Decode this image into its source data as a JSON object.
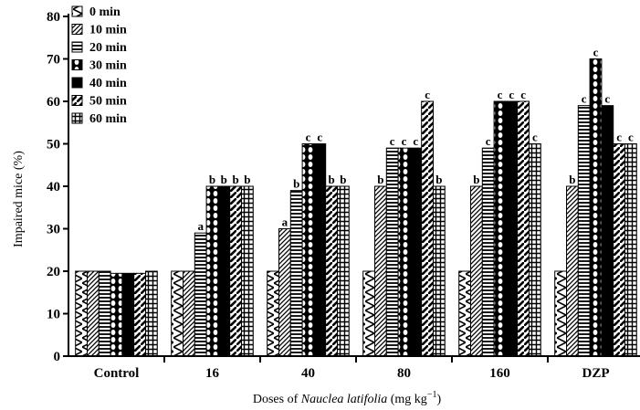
{
  "chart_data": {
    "type": "bar",
    "xlabel": {
      "prefix": "Doses of ",
      "italic": "Nauclea latifolia",
      "suffix": " (mg kg",
      "sup": "−1",
      "close": ")"
    },
    "ylabel": "Impaired mice (%)",
    "ylim": [
      0,
      80
    ],
    "yticks": [
      "0",
      "10",
      "20",
      "30",
      "40",
      "50",
      "60",
      "70",
      "80"
    ],
    "categories": [
      "Control",
      "16",
      "40",
      "80",
      "160",
      "DZP"
    ],
    "legend_position": "top-left",
    "series": [
      {
        "name": "0 min",
        "pattern": "zigzag",
        "values": [
          20,
          20,
          20,
          20,
          20,
          20
        ],
        "labels": [
          "",
          "",
          "",
          "",
          "",
          ""
        ]
      },
      {
        "name": "10 min",
        "pattern": "diagonal",
        "values": [
          20,
          20,
          30,
          40,
          40,
          40
        ],
        "labels": [
          "",
          "",
          "a",
          "b",
          "b",
          "b"
        ]
      },
      {
        "name": "20 min",
        "pattern": "horizontal",
        "values": [
          20,
          29,
          39,
          49,
          49,
          59
        ],
        "labels": [
          "",
          "a",
          "b",
          "c",
          "c",
          "c"
        ]
      },
      {
        "name": "30 min",
        "pattern": "circles",
        "values": [
          19.5,
          40,
          50,
          49,
          60,
          70
        ],
        "labels": [
          "",
          "b",
          "c",
          "c",
          "c",
          "c"
        ]
      },
      {
        "name": "40 min",
        "pattern": "solid",
        "values": [
          19.5,
          40,
          50,
          49,
          60,
          59
        ],
        "labels": [
          "",
          "b",
          "c",
          "c",
          "c",
          "c"
        ]
      },
      {
        "name": "50 min",
        "pattern": "dashed",
        "values": [
          19.5,
          40,
          40,
          60,
          60,
          50
        ],
        "labels": [
          "",
          "b",
          "b",
          "c",
          "c",
          "c"
        ]
      },
      {
        "name": "60 min",
        "pattern": "grid",
        "values": [
          20,
          40,
          40,
          40,
          50,
          50
        ],
        "labels": [
          "",
          "b",
          "b",
          "b",
          "c",
          "c"
        ]
      }
    ]
  }
}
